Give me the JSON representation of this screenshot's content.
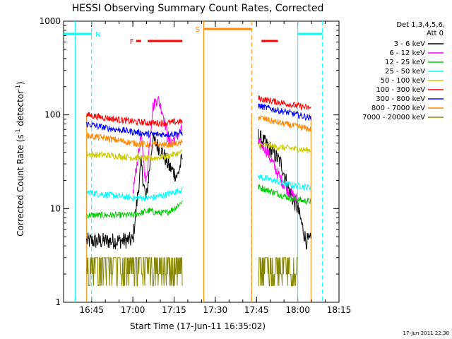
{
  "chart_data": {
    "type": "line",
    "title": "HESSI Observing Summary Count Rates, Corrected",
    "xlabel": "Start Time (17-Jun-11 16:35:02)",
    "ylabel_main": "Corrected Count Rate (s",
    "ylabel_sup1": "-1",
    "ylabel_mid": " detector",
    "ylabel_sup2": "-1",
    "ylabel_end": ")",
    "y_scale": "log",
    "ylim": [
      1,
      1000
    ],
    "xlim_minutes": [
      16.58,
      18.25
    ],
    "x_unit": "hours (time of day)",
    "x_ticks": [
      {
        "value": 16.75,
        "label": "16:45"
      },
      {
        "value": 17.0,
        "label": "17:00"
      },
      {
        "value": 17.25,
        "label": "17:15"
      },
      {
        "value": 17.5,
        "label": "17:30"
      },
      {
        "value": 17.75,
        "label": "17:45"
      },
      {
        "value": 18.0,
        "label": "18:00"
      },
      {
        "value": 18.25,
        "label": "18:15"
      }
    ],
    "y_ticks": [
      {
        "value": 1,
        "label": "1"
      },
      {
        "value": 10,
        "label": "10"
      },
      {
        "value": 100,
        "label": "100"
      },
      {
        "value": 1000,
        "label": "1000"
      }
    ],
    "legend_header": [
      "Det 1,3,4,5,6,",
      "Att 0"
    ],
    "legend_position": "top-right outside",
    "series": [
      {
        "name": "3 - 6 keV",
        "color": "#000000",
        "segments": [
          {
            "t": [
              16.72,
              16.85,
              17.0,
              17.05,
              17.08,
              17.12,
              17.18,
              17.22,
              17.27,
              17.3
            ],
            "v": [
              4.5,
              4.5,
              4.6,
              30,
              12,
              55,
              40,
              28,
              22,
              35
            ]
          },
          {
            "t": [
              17.76,
              17.8,
              17.85,
              17.9,
              17.95,
              18.0,
              18.05,
              18.08
            ],
            "v": [
              60,
              50,
              40,
              30,
              15,
              10,
              4.5,
              4.5
            ]
          }
        ]
      },
      {
        "name": "6 - 12 keV",
        "color": "#ff00ff",
        "segments": [
          {
            "t": [
              17.0,
              17.05,
              17.08,
              17.12,
              17.15,
              17.18,
              17.22,
              17.27,
              17.3
            ],
            "v": [
              15,
              60,
              18,
              120,
              150,
              110,
              50,
              60,
              70
            ]
          },
          {
            "t": [
              17.76,
              17.8,
              17.85,
              17.9,
              17.95,
              18.0
            ],
            "v": [
              50,
              45,
              30,
              20,
              15,
              12
            ]
          }
        ]
      },
      {
        "name": "12 - 25 keV",
        "color": "#00cc00",
        "segments": [
          {
            "t": [
              16.72,
              16.85,
              17.0,
              17.05,
              17.1,
              17.15,
              17.2,
              17.25,
              17.3
            ],
            "v": [
              8.5,
              8.5,
              8.5,
              9,
              9.5,
              9,
              9,
              10,
              12
            ]
          },
          {
            "t": [
              17.76,
              17.85,
              17.95,
              18.05,
              18.08
            ],
            "v": [
              17,
              15,
              13,
              12,
              12
            ]
          }
        ]
      },
      {
        "name": "25 - 50 keV",
        "color": "#00ffff",
        "segments": [
          {
            "t": [
              16.72,
              16.85,
              17.0,
              17.1,
              17.2,
              17.3
            ],
            "v": [
              15,
              14,
              13,
              13,
              14,
              16
            ]
          },
          {
            "t": [
              17.76,
              17.85,
              17.95,
              18.05,
              18.08
            ],
            "v": [
              22,
              20,
              18,
              17,
              17
            ]
          }
        ]
      },
      {
        "name": "50 - 100 keV",
        "color": "#cccc00",
        "segments": [
          {
            "t": [
              16.72,
              16.85,
              17.0,
              17.1,
              17.2,
              17.3
            ],
            "v": [
              38,
              37,
              35,
              34,
              36,
              40
            ]
          },
          {
            "t": [
              17.76,
              17.85,
              17.95,
              18.05,
              18.08
            ],
            "v": [
              48,
              46,
              44,
              42,
              42
            ]
          }
        ]
      },
      {
        "name": "100 - 300 keV",
        "color": "#ff0000",
        "segments": [
          {
            "t": [
              16.72,
              16.85,
              17.0,
              17.1,
              17.2,
              17.3
            ],
            "v": [
              100,
              92,
              85,
              82,
              82,
              85
            ]
          },
          {
            "t": [
              17.76,
              17.85,
              17.95,
              18.05,
              18.08
            ],
            "v": [
              150,
              140,
              130,
              120,
              118
            ]
          }
        ]
      },
      {
        "name": "300 - 800 keV",
        "color": "#0000ff",
        "segments": [
          {
            "t": [
              16.72,
              16.85,
              17.0,
              17.1,
              17.2,
              17.3
            ],
            "v": [
              80,
              72,
              66,
              62,
              62,
              64
            ]
          },
          {
            "t": [
              17.76,
              17.85,
              17.95,
              18.05,
              18.08
            ],
            "v": [
              125,
              115,
              105,
              95,
              92
            ]
          }
        ]
      },
      {
        "name": "800 - 7000 keV",
        "color": "#ff8800",
        "segments": [
          {
            "t": [
              16.72,
              16.85,
              17.0,
              17.1,
              17.2,
              17.3
            ],
            "v": [
              60,
              56,
              50,
              48,
              48,
              50
            ]
          },
          {
            "t": [
              17.76,
              17.85,
              17.95,
              18.05,
              18.08
            ],
            "v": [
              95,
              85,
              78,
              72,
              70
            ]
          }
        ]
      },
      {
        "name": "7000 - 20000 keV",
        "color": "#888800",
        "segments": [
          {
            "t": [
              16.72,
              16.85,
              17.0,
              17.1,
              17.2,
              17.3
            ],
            "v": [
              2.5,
              2.5,
              2.5,
              2.5,
              2.5,
              2.5
            ]
          },
          {
            "t": [
              17.76,
              17.85,
              17.95,
              18.0
            ],
            "v": [
              2.5,
              2.5,
              2.5,
              2.5
            ]
          }
        ]
      }
    ],
    "bars": [
      {
        "label": "N",
        "color": "#00ffff",
        "segments": [
          [
            16.58,
            16.75
          ],
          [
            18.0,
            18.15
          ]
        ]
      },
      {
        "label": "F",
        "color": "#ff0000",
        "segments": [
          [
            17.02,
            17.05
          ],
          [
            17.09,
            17.3
          ],
          [
            17.78,
            17.88
          ]
        ]
      },
      {
        "label": "S",
        "color": "#ff8800",
        "segments": [
          [
            17.43,
            17.72
          ]
        ]
      }
    ],
    "vertical_lines": [
      {
        "t": 16.65,
        "color": "#00ffff",
        "style": "solid"
      },
      {
        "t": 16.75,
        "color": "#00ffff",
        "style": "dashed"
      },
      {
        "t": 17.43,
        "color": "#ff8800",
        "style": "solid"
      },
      {
        "t": 17.72,
        "color": "#ff8800",
        "style": "dashed"
      },
      {
        "t": 18.0,
        "color": "#00ffff",
        "style": "solid"
      },
      {
        "t": 18.15,
        "color": "#00ffff",
        "style": "dashed"
      }
    ],
    "orange_frames": [
      [
        16.72,
        17.43
      ],
      [
        17.72,
        18.08
      ]
    ]
  },
  "footer": {
    "timestamp": "17-Jun-2011 22:38"
  }
}
